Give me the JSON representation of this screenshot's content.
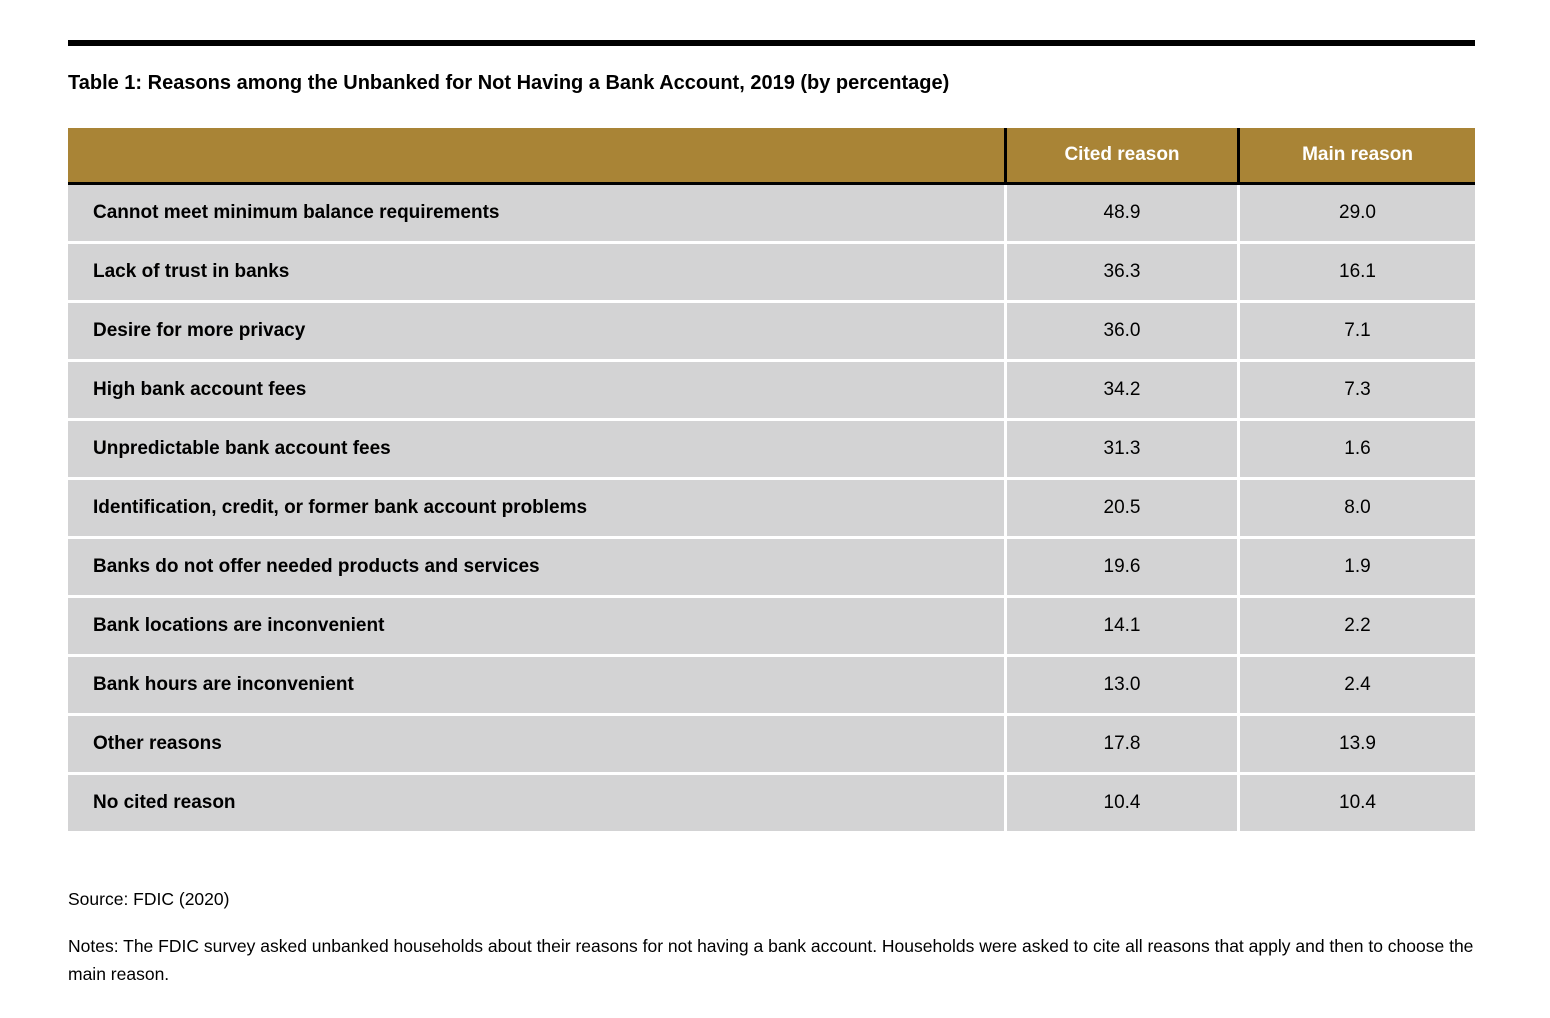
{
  "page": {
    "title": "Table 1: Reasons among the Unbanked for Not Having a Bank Account, 2019 (by percentage)",
    "source": "Source: FDIC (2020)",
    "notes": "Notes: The FDIC survey asked unbanked households about their reasons for not having a bank account. Households were asked to cite all reasons that apply and then to choose the main reason."
  },
  "colors": {
    "header_bg": "#a98436",
    "header_text": "#ffffff",
    "row_bg": "#d3d3d4",
    "rule": "#000000"
  },
  "table": {
    "header": {
      "label_col": "",
      "cited_col": "Cited reason",
      "main_col": "Main reason"
    },
    "rows": [
      {
        "label": "Cannot meet minimum balance requirements",
        "cited": "48.9",
        "main": "29.0"
      },
      {
        "label": "Lack of trust in banks",
        "cited": "36.3",
        "main": "16.1"
      },
      {
        "label": "Desire for more privacy",
        "cited": "36.0",
        "main": "7.1"
      },
      {
        "label": "High bank account fees",
        "cited": "34.2",
        "main": "7.3"
      },
      {
        "label": "Unpredictable bank account fees",
        "cited": "31.3",
        "main": "1.6"
      },
      {
        "label": "Identification, credit, or former bank account problems",
        "cited": "20.5",
        "main": "8.0"
      },
      {
        "label": "Banks do not offer needed products and services",
        "cited": "19.6",
        "main": "1.9"
      },
      {
        "label": "Bank locations are inconvenient",
        "cited": "14.1",
        "main": "2.2"
      },
      {
        "label": "Bank hours are inconvenient",
        "cited": "13.0",
        "main": "2.4"
      },
      {
        "label": "Other reasons",
        "cited": "17.8",
        "main": "13.9"
      },
      {
        "label": "No cited reason",
        "cited": "10.4",
        "main": "10.4"
      }
    ]
  }
}
